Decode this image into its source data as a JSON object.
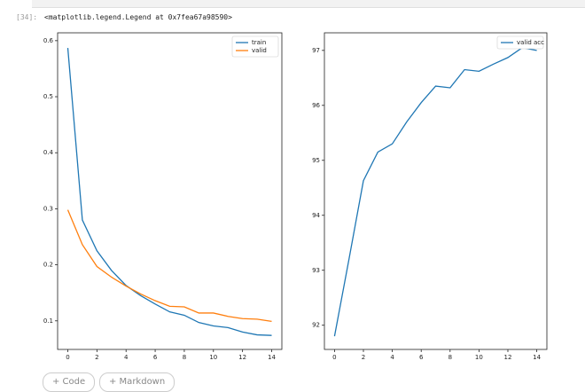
{
  "cell": {
    "prompt": "[34]:",
    "output": "<matplotlib.legend.Legend at 0x7fea67a98590>"
  },
  "buttons": [
    "+ Code",
    "+ Markdown"
  ],
  "chart_data": [
    {
      "type": "line",
      "x": [
        0,
        1,
        2,
        3,
        4,
        5,
        6,
        7,
        8,
        9,
        10,
        11,
        12,
        13,
        14
      ],
      "xlim": [
        -0.7,
        14.7
      ],
      "xticks": [
        0,
        2,
        4,
        6,
        8,
        10,
        12,
        14
      ],
      "ylim": [
        0.049,
        0.614
      ],
      "yticks": [
        0.1,
        0.2,
        0.3,
        0.4,
        0.5,
        0.6
      ],
      "legend": "upper right",
      "series": [
        {
          "name": "train",
          "color": "#1f77b4",
          "values": [
            0.587,
            0.28,
            0.225,
            0.19,
            0.163,
            0.145,
            0.13,
            0.116,
            0.11,
            0.097,
            0.091,
            0.088,
            0.08,
            0.075,
            0.074
          ]
        },
        {
          "name": "valid",
          "color": "#ff7f0e",
          "values": [
            0.298,
            0.236,
            0.197,
            0.178,
            0.162,
            0.148,
            0.136,
            0.126,
            0.125,
            0.114,
            0.114,
            0.108,
            0.104,
            0.103,
            0.099
          ]
        }
      ]
    },
    {
      "type": "line",
      "x": [
        0,
        1,
        2,
        3,
        4,
        5,
        6,
        7,
        8,
        9,
        10,
        11,
        12,
        13,
        14
      ],
      "xlim": [
        -0.7,
        14.7
      ],
      "xticks": [
        0,
        2,
        4,
        6,
        8,
        10,
        12,
        14
      ],
      "ylim": [
        91.56,
        97.32
      ],
      "yticks": [
        92,
        93,
        94,
        95,
        96,
        97
      ],
      "legend": "upper right",
      "series": [
        {
          "name": "valid acc",
          "color": "#1f77b4",
          "values": [
            91.8,
            93.2,
            94.63,
            95.15,
            95.3,
            95.7,
            96.05,
            96.35,
            96.32,
            96.65,
            96.62,
            96.75,
            96.87,
            97.05,
            97.0
          ]
        }
      ]
    }
  ]
}
